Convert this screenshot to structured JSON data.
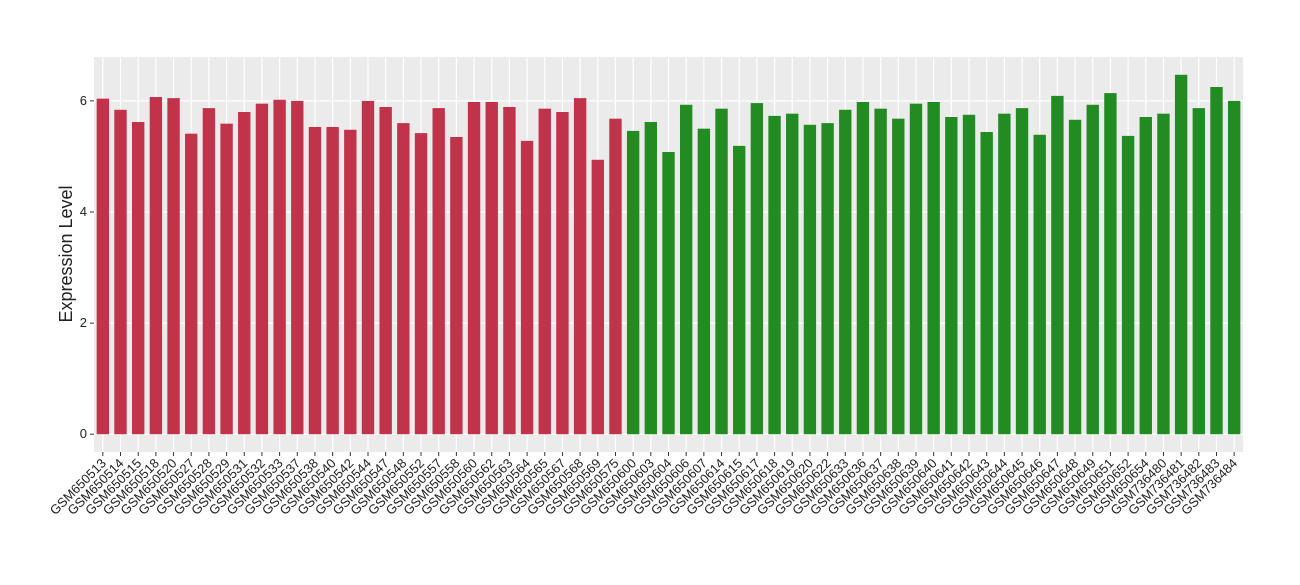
{
  "chart_data": {
    "type": "bar",
    "y_label": "Expression Level",
    "categories": [
      "GSM650513",
      "GSM650514",
      "GSM650515",
      "GSM650518",
      "GSM650520",
      "GSM650527",
      "GSM650528",
      "GSM650529",
      "GSM650531",
      "GSM650532",
      "GSM650533",
      "GSM650537",
      "GSM650538",
      "GSM650540",
      "GSM650542",
      "GSM650544",
      "GSM650547",
      "GSM650548",
      "GSM650552",
      "GSM650557",
      "GSM650558",
      "GSM650560",
      "GSM650562",
      "GSM650563",
      "GSM650564",
      "GSM650565",
      "GSM650567",
      "GSM650568",
      "GSM650569",
      "GSM650575",
      "GSM650600",
      "GSM650603",
      "GSM650604",
      "GSM650606",
      "GSM650607",
      "GSM650614",
      "GSM650615",
      "GSM650617",
      "GSM650618",
      "GSM650619",
      "GSM650620",
      "GSM650622",
      "GSM650633",
      "GSM650636",
      "GSM650637",
      "GSM650638",
      "GSM650639",
      "GSM650640",
      "GSM650641",
      "GSM650642",
      "GSM650643",
      "GSM650644",
      "GSM650645",
      "GSM650646",
      "GSM650647",
      "GSM650648",
      "GSM650649",
      "GSM650651",
      "GSM650652",
      "GSM650654",
      "GSM736480",
      "GSM736481",
      "GSM736482",
      "GSM736483",
      "GSM736484"
    ],
    "values": [
      6.04,
      5.84,
      5.62,
      6.07,
      6.05,
      5.41,
      5.87,
      5.59,
      5.8,
      5.95,
      6.02,
      6.0,
      5.53,
      5.53,
      5.48,
      6.0,
      5.89,
      5.6,
      5.42,
      5.87,
      5.35,
      5.98,
      5.98,
      5.89,
      5.28,
      5.86,
      5.8,
      6.05,
      4.94,
      5.68,
      5.46,
      5.62,
      5.08,
      5.93,
      5.5,
      5.86,
      5.19,
      5.96,
      5.73,
      5.77,
      5.57,
      5.6,
      5.84,
      5.98,
      5.86,
      5.68,
      5.95,
      5.98,
      5.71,
      5.75,
      5.44,
      5.77,
      5.87,
      5.39,
      6.09,
      5.66,
      5.93,
      6.14,
      5.37,
      5.71,
      5.77,
      6.47,
      5.87,
      6.25,
      6.0
    ],
    "colors": [
      "#c0334a",
      "#c0334a",
      "#c0334a",
      "#c0334a",
      "#c0334a",
      "#c0334a",
      "#c0334a",
      "#c0334a",
      "#c0334a",
      "#c0334a",
      "#c0334a",
      "#c0334a",
      "#c0334a",
      "#c0334a",
      "#c0334a",
      "#c0334a",
      "#c0334a",
      "#c0334a",
      "#c0334a",
      "#c0334a",
      "#c0334a",
      "#c0334a",
      "#c0334a",
      "#c0334a",
      "#c0334a",
      "#c0334a",
      "#c0334a",
      "#c0334a",
      "#c0334a",
      "#c0334a",
      "#228b22",
      "#228b22",
      "#228b22",
      "#228b22",
      "#228b22",
      "#228b22",
      "#228b22",
      "#228b22",
      "#228b22",
      "#228b22",
      "#228b22",
      "#228b22",
      "#228b22",
      "#228b22",
      "#228b22",
      "#228b22",
      "#228b22",
      "#228b22",
      "#228b22",
      "#228b22",
      "#228b22",
      "#228b22",
      "#228b22",
      "#228b22",
      "#228b22",
      "#228b22",
      "#228b22",
      "#228b22",
      "#228b22",
      "#228b22",
      "#228b22",
      "#228b22",
      "#228b22",
      "#228b22",
      "#228b22"
    ],
    "ylim": [
      -0.32,
      6.79
    ],
    "yticks": [
      0,
      2,
      4,
      6
    ],
    "grid": true
  }
}
